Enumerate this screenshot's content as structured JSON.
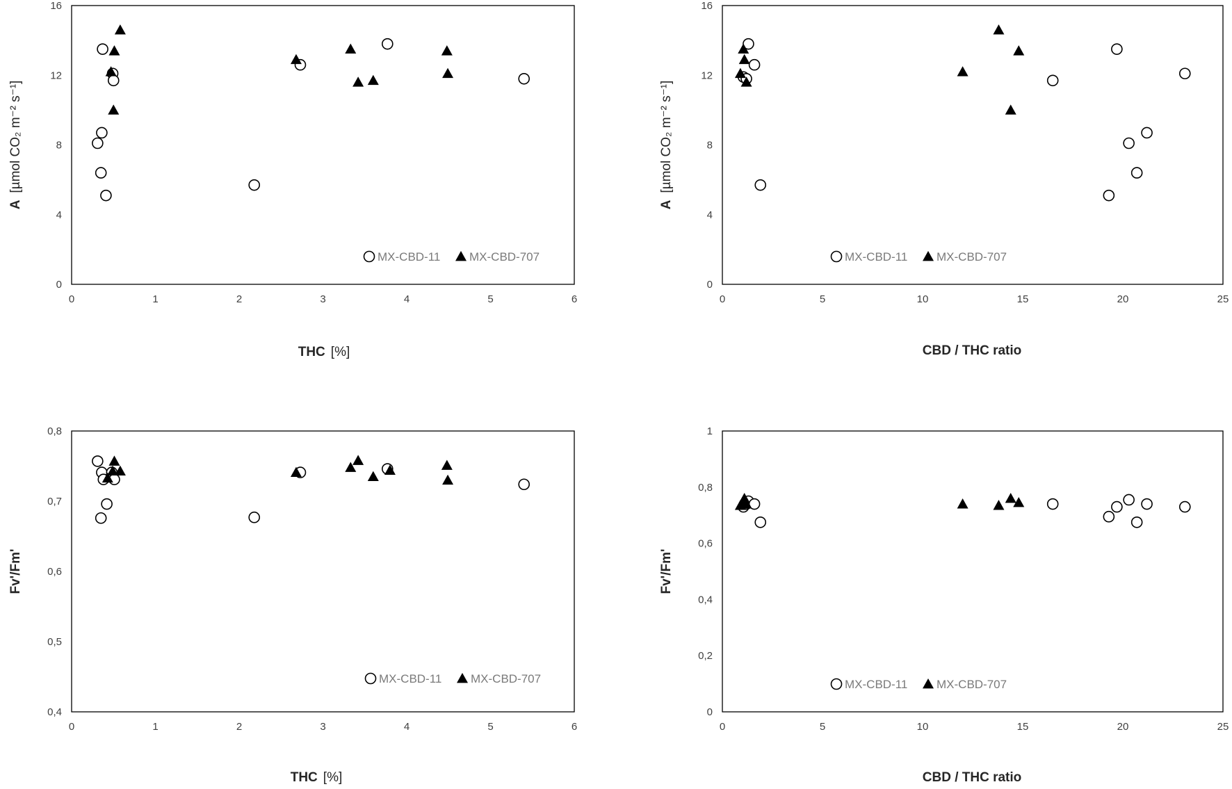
{
  "colors": {
    "marker": "#000000",
    "frame": "#000000",
    "tick_text": "#404040",
    "legend_text": "#7a7a7a"
  },
  "chart_data": [
    {
      "id": "A_vs_THC",
      "type": "scatter",
      "xlabel": "THC",
      "xunit": "[%]",
      "ylabel": "A",
      "yunit": "[µmol CO₂ m⁻² s⁻¹]",
      "xlim": [
        0,
        6
      ],
      "ylim": [
        0,
        16
      ],
      "xticks": [
        "0",
        "1",
        "2",
        "3",
        "4",
        "5",
        "6"
      ],
      "yticks": [
        "0",
        "4",
        "8",
        "12",
        "16"
      ],
      "legend": [
        "MX-CBD-11",
        "MX-CBD-707"
      ],
      "legend_position": "bottom-right",
      "series": [
        {
          "name": "MX-CBD-11",
          "marker": "circle-open",
          "x": [
            0.31,
            0.35,
            0.36,
            0.37,
            0.41,
            0.49,
            0.5,
            2.18,
            2.73,
            3.77,
            5.4
          ],
          "y": [
            8.1,
            6.4,
            8.7,
            13.5,
            5.1,
            12.1,
            11.7,
            5.7,
            12.6,
            13.8,
            11.8
          ]
        },
        {
          "name": "MX-CBD-707",
          "marker": "triangle-filled",
          "x": [
            0.47,
            0.5,
            0.51,
            0.58,
            2.68,
            3.33,
            3.42,
            3.6,
            4.48,
            4.49
          ],
          "y": [
            12.2,
            10.0,
            13.4,
            14.6,
            12.9,
            13.5,
            11.6,
            11.7,
            13.4,
            12.1
          ]
        }
      ]
    },
    {
      "id": "A_vs_ratio",
      "type": "scatter",
      "xlabel": "CBD / THC ratio",
      "xunit": "",
      "ylabel": "A",
      "yunit": "[µmol CO₂ m⁻² s⁻¹]",
      "xlim": [
        0,
        25
      ],
      "ylim": [
        0,
        16
      ],
      "xticks": [
        "0",
        "5",
        "10",
        "15",
        "20",
        "25"
      ],
      "yticks": [
        "0",
        "4",
        "8",
        "12",
        "16"
      ],
      "legend": [
        "MX-CBD-11",
        "MX-CBD-707"
      ],
      "legend_position": "bottom-left",
      "series": [
        {
          "name": "MX-CBD-11",
          "marker": "circle-open",
          "x": [
            1.05,
            1.2,
            1.3,
            1.6,
            1.9,
            16.5,
            19.3,
            19.7,
            20.3,
            20.7,
            21.2,
            23.1
          ],
          "y": [
            11.9,
            11.8,
            13.8,
            12.6,
            5.7,
            11.7,
            5.1,
            13.5,
            8.1,
            6.4,
            8.7,
            12.1
          ]
        },
        {
          "name": "MX-CBD-707",
          "marker": "triangle-filled",
          "x": [
            0.9,
            1.05,
            1.1,
            1.2,
            12.0,
            13.8,
            14.4,
            14.8
          ],
          "y": [
            12.1,
            13.5,
            12.9,
            11.6,
            12.2,
            14.6,
            10.0,
            13.4
          ]
        }
      ]
    },
    {
      "id": "Fv_vs_THC",
      "type": "scatter",
      "xlabel": "THC",
      "xunit": "[%]",
      "ylabel": "Fv'/Fm'",
      "yunit": "",
      "xlim": [
        0,
        6
      ],
      "ylim": [
        0.4,
        0.8
      ],
      "xticks": [
        "0",
        "1",
        "2",
        "3",
        "4",
        "5",
        "6"
      ],
      "yticks": [
        "0,4",
        "0,5",
        "0,6",
        "0,7",
        "0,8"
      ],
      "legend": [
        "MX-CBD-11",
        "MX-CBD-707"
      ],
      "legend_position": "bottom-right",
      "series": [
        {
          "name": "MX-CBD-11",
          "marker": "circle-open",
          "x": [
            0.31,
            0.35,
            0.36,
            0.38,
            0.42,
            0.48,
            0.51,
            2.18,
            2.73,
            3.77,
            5.4
          ],
          "y": [
            0.757,
            0.676,
            0.741,
            0.731,
            0.696,
            0.741,
            0.731,
            0.677,
            0.741,
            0.746,
            0.724
          ]
        },
        {
          "name": "MX-CBD-707",
          "marker": "triangle-filled",
          "x": [
            0.43,
            0.49,
            0.51,
            0.58,
            2.68,
            3.33,
            3.42,
            3.6,
            3.8,
            4.48,
            4.49
          ],
          "y": [
            0.733,
            0.743,
            0.757,
            0.743,
            0.741,
            0.748,
            0.758,
            0.735,
            0.744,
            0.751,
            0.73
          ]
        }
      ]
    },
    {
      "id": "Fv_vs_ratio",
      "type": "scatter",
      "xlabel": "CBD / THC ratio",
      "xunit": "",
      "ylabel": "Fv'/Fm'",
      "yunit": "",
      "xlim": [
        0,
        25
      ],
      "ylim": [
        0,
        1
      ],
      "xticks": [
        "0",
        "5",
        "10",
        "15",
        "20",
        "25"
      ],
      "yticks": [
        "0",
        "0,2",
        "0,4",
        "0,6",
        "0,8",
        "1"
      ],
      "legend": [
        "MX-CBD-11",
        "MX-CBD-707"
      ],
      "legend_position": "bottom-left",
      "series": [
        {
          "name": "MX-CBD-11",
          "marker": "circle-open",
          "x": [
            1.05,
            1.2,
            1.3,
            1.6,
            1.9,
            16.5,
            19.3,
            19.7,
            20.3,
            20.7,
            21.2,
            23.1
          ],
          "y": [
            0.73,
            0.74,
            0.75,
            0.74,
            0.675,
            0.74,
            0.695,
            0.73,
            0.755,
            0.675,
            0.74,
            0.73
          ]
        },
        {
          "name": "MX-CBD-707",
          "marker": "triangle-filled",
          "x": [
            0.9,
            1.05,
            1.1,
            1.2,
            12.0,
            13.8,
            14.4,
            14.8
          ],
          "y": [
            0.735,
            0.745,
            0.76,
            0.74,
            0.74,
            0.735,
            0.76,
            0.745
          ]
        }
      ]
    }
  ]
}
